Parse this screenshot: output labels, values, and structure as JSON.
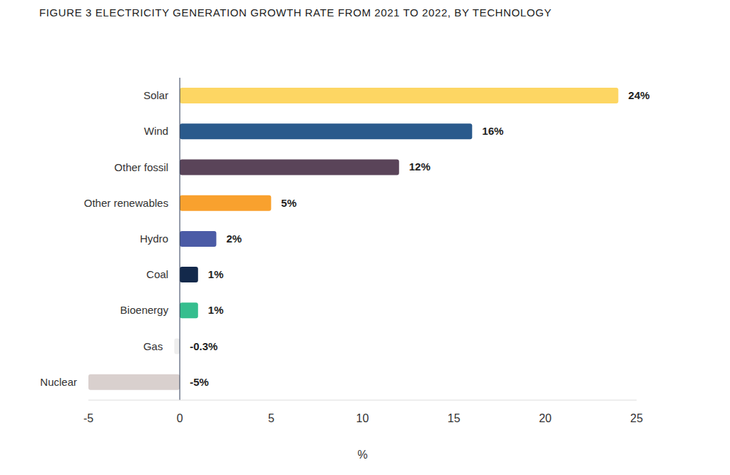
{
  "chart_data": {
    "type": "bar",
    "title": "FIGURE 3 ELECTRICITY GENERATION GROWTH RATE FROM 2021 TO 2022, BY TECHNOLOGY",
    "orientation": "horizontal",
    "categories": [
      "Solar",
      "Wind",
      "Other fossil",
      "Other renewables",
      "Hydro",
      "Coal",
      "Bioenergy",
      "Gas",
      "Nuclear"
    ],
    "values": [
      24,
      16,
      12,
      5,
      2,
      1,
      1,
      -0.3,
      -5
    ],
    "value_labels": [
      "24%",
      "16%",
      "12%",
      "5%",
      "2%",
      "1%",
      "1%",
      "-0.3%",
      "-5%"
    ],
    "colors": [
      "#FDD663",
      "#2A5A8C",
      "#5A4459",
      "#F9A12E",
      "#4B5BA6",
      "#13294B",
      "#35BE8E",
      "#EEEEEE",
      "#D9D0CE"
    ],
    "x_label": "%",
    "xlim": [
      -5,
      25
    ],
    "xticks": [
      -5,
      0,
      5,
      10,
      15,
      20,
      25
    ],
    "data_labels": true,
    "grid": false
  }
}
